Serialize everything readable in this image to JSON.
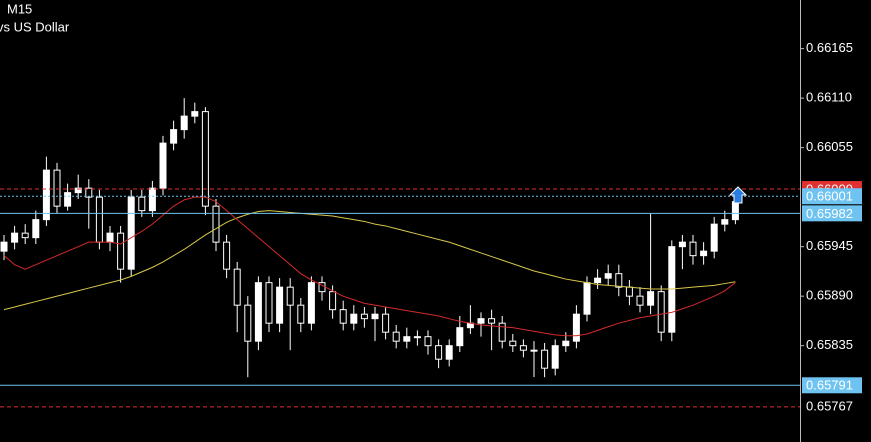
{
  "chart_data": {
    "type": "candlestick",
    "title": "M15",
    "subtitle": "vs US Dollar",
    "ylim": [
      0.65728,
      0.66219
    ],
    "yticks": [
      {
        "value": 0.66165,
        "label": "0.66165"
      },
      {
        "value": 0.6611,
        "label": "0.66110"
      },
      {
        "value": 0.66055,
        "label": "0.66055"
      },
      {
        "value": 0.65945,
        "label": "0.65945"
      },
      {
        "value": 0.6589,
        "label": "0.65890"
      },
      {
        "value": 0.65835,
        "label": "0.65835"
      }
    ],
    "up_color": "#ffffff",
    "down_color": "#000000",
    "open": [
      0.6594,
      0.6595,
      0.6596,
      0.65955,
      0.65975,
      0.6603,
      0.6599,
      0.66005,
      0.6601,
      0.66,
      0.6595,
      0.6596,
      0.6592,
      0.66,
      0.65985,
      0.6601,
      0.6606,
      0.66075,
      0.6609,
      0.66095,
      0.6599,
      0.6595,
      0.6592,
      0.6588,
      0.6584,
      0.65905,
      0.6586,
      0.659,
      0.6588,
      0.6586,
      0.65905,
      0.65895,
      0.65875,
      0.6586,
      0.6587,
      0.65865,
      0.6587,
      0.6585,
      0.6584,
      0.65845,
      0.65845,
      0.65835,
      0.6582,
      0.65835,
      0.65855,
      0.6586,
      0.65865,
      0.6586,
      0.6584,
      0.65835,
      0.6583,
      0.6583,
      0.6581,
      0.65835,
      0.6584,
      0.6587,
      0.65905,
      0.6591,
      0.65915,
      0.659,
      0.6589,
      0.6588,
      0.65895,
      0.6585,
      0.65945,
      0.6595,
      0.65935,
      0.6594,
      0.6597,
      0.65975
    ],
    "high": [
      0.65958,
      0.65968,
      0.6597,
      0.65985,
      0.66045,
      0.66038,
      0.66015,
      0.66025,
      0.6602,
      0.66008,
      0.65968,
      0.65968,
      0.66008,
      0.66008,
      0.66018,
      0.66068,
      0.66085,
      0.6611,
      0.66105,
      0.661,
      0.65998,
      0.65958,
      0.65928,
      0.6589,
      0.65912,
      0.65912,
      0.6591,
      0.6591,
      0.65888,
      0.65912,
      0.65912,
      0.65902,
      0.65885,
      0.6588,
      0.65878,
      0.65878,
      0.65878,
      0.65858,
      0.65855,
      0.65852,
      0.65852,
      0.65842,
      0.65842,
      0.65868,
      0.6588,
      0.65872,
      0.65875,
      0.65868,
      0.65848,
      0.65842,
      0.6584,
      0.65838,
      0.65842,
      0.6585,
      0.6588,
      0.65912,
      0.6592,
      0.65925,
      0.65925,
      0.65908,
      0.659,
      0.65982,
      0.65902,
      0.65952,
      0.65958,
      0.65958,
      0.6595,
      0.65978,
      0.65985,
      0.66
    ],
    "low": [
      0.6593,
      0.65942,
      0.65948,
      0.65948,
      0.65968,
      0.65982,
      0.65985,
      0.65998,
      0.65965,
      0.65942,
      0.6594,
      0.65905,
      0.65912,
      0.65978,
      0.65978,
      0.66002,
      0.66052,
      0.66065,
      0.66082,
      0.6598,
      0.6594,
      0.6591,
      0.6585,
      0.658,
      0.6583,
      0.6585,
      0.6585,
      0.6583,
      0.6585,
      0.65852,
      0.65885,
      0.65865,
      0.65852,
      0.65852,
      0.65855,
      0.6584,
      0.65842,
      0.65832,
      0.65832,
      0.65835,
      0.65825,
      0.6581,
      0.65812,
      0.65828,
      0.65848,
      0.65845,
      0.6583,
      0.65832,
      0.65828,
      0.65822,
      0.658,
      0.658,
      0.65802,
      0.65828,
      0.65832,
      0.65862,
      0.65898,
      0.65902,
      0.6589,
      0.6588,
      0.65872,
      0.6587,
      0.6584,
      0.6584,
      0.6592,
      0.65925,
      0.65925,
      0.65932,
      0.65962,
      0.6597
    ],
    "close": [
      0.6595,
      0.6596,
      0.65955,
      0.65975,
      0.6603,
      0.6599,
      0.66005,
      0.6601,
      0.66,
      0.6595,
      0.6596,
      0.6592,
      0.66,
      0.65985,
      0.6601,
      0.6606,
      0.66075,
      0.6609,
      0.66095,
      0.6599,
      0.6595,
      0.6592,
      0.6588,
      0.6584,
      0.65905,
      0.6586,
      0.659,
      0.6588,
      0.6586,
      0.65905,
      0.65895,
      0.65875,
      0.6586,
      0.6587,
      0.65865,
      0.6587,
      0.6585,
      0.6584,
      0.65845,
      0.65845,
      0.65835,
      0.6582,
      0.65835,
      0.65855,
      0.6586,
      0.65865,
      0.6586,
      0.6584,
      0.65835,
      0.6583,
      0.6583,
      0.6581,
      0.65835,
      0.6584,
      0.6587,
      0.65905,
      0.6591,
      0.65915,
      0.659,
      0.6589,
      0.6588,
      0.65895,
      0.6585,
      0.65945,
      0.6595,
      0.65935,
      0.6594,
      0.6597,
      0.65975,
      0.65995
    ],
    "series": [
      {
        "color": "#d8c84a",
        "values": [
          0.65875,
          0.65878,
          0.65881,
          0.65884,
          0.65887,
          0.6589,
          0.65893,
          0.65896,
          0.65899,
          0.65902,
          0.65905,
          0.65908,
          0.65912,
          0.65917,
          0.65922,
          0.65928,
          0.65935,
          0.65942,
          0.6595,
          0.65958,
          0.65965,
          0.65972,
          0.65977,
          0.65981,
          0.65984,
          0.65985,
          0.65984,
          0.65983,
          0.65982,
          0.65981,
          0.6598,
          0.65979,
          0.65977,
          0.65975,
          0.65973,
          0.6597,
          0.65968,
          0.65965,
          0.65962,
          0.65959,
          0.65956,
          0.65953,
          0.6595,
          0.65946,
          0.65942,
          0.65938,
          0.65934,
          0.6593,
          0.65926,
          0.65922,
          0.65918,
          0.65915,
          0.65912,
          0.65909,
          0.65907,
          0.65905,
          0.65903,
          0.65902,
          0.65901,
          0.659,
          0.65899,
          0.65898,
          0.65898,
          0.65898,
          0.65899,
          0.659,
          0.65901,
          0.65902,
          0.65904,
          0.65906
        ]
      },
      {
        "color": "#d42a2a",
        "values": [
          0.65935,
          0.65925,
          0.6592,
          0.65925,
          0.6593,
          0.65935,
          0.6594,
          0.65945,
          0.6595,
          0.6595,
          0.6595,
          0.65948,
          0.65955,
          0.65962,
          0.6597,
          0.6598,
          0.6599,
          0.65997,
          0.66,
          0.66,
          0.65995,
          0.65985,
          0.65975,
          0.65965,
          0.65955,
          0.65945,
          0.65935,
          0.65925,
          0.65915,
          0.65908,
          0.65902,
          0.65896,
          0.6589,
          0.65886,
          0.65882,
          0.6588,
          0.65878,
          0.65876,
          0.65874,
          0.65872,
          0.6587,
          0.65868,
          0.65865,
          0.65862,
          0.6586,
          0.65858,
          0.65857,
          0.65856,
          0.65855,
          0.65853,
          0.65851,
          0.65849,
          0.65847,
          0.65846,
          0.65846,
          0.65848,
          0.65852,
          0.65856,
          0.6586,
          0.65863,
          0.65866,
          0.65868,
          0.6587,
          0.65872,
          0.65876,
          0.6588,
          0.65885,
          0.6589,
          0.65896,
          0.65905
        ]
      }
    ],
    "levels": [
      {
        "value": 0.65767,
        "label": "0.65767",
        "color": "#e03030",
        "style": "dashed",
        "tag": "text"
      },
      {
        "value": 0.65791,
        "label": "0.65791",
        "color": "#6ec3f0",
        "style": "solid",
        "tag": "box"
      },
      {
        "value": 0.66009,
        "label": "0.66009",
        "color": "#e03030",
        "style": "dashed",
        "tag": "box"
      },
      {
        "value": 0.65982,
        "label": "0.65982",
        "color": "#6ec3f0",
        "style": "solid",
        "tag": "box"
      },
      {
        "value": 0.66001,
        "label": "0.66001",
        "color": "#6ec3f0",
        "style": "dotted",
        "tag": "box"
      }
    ]
  }
}
